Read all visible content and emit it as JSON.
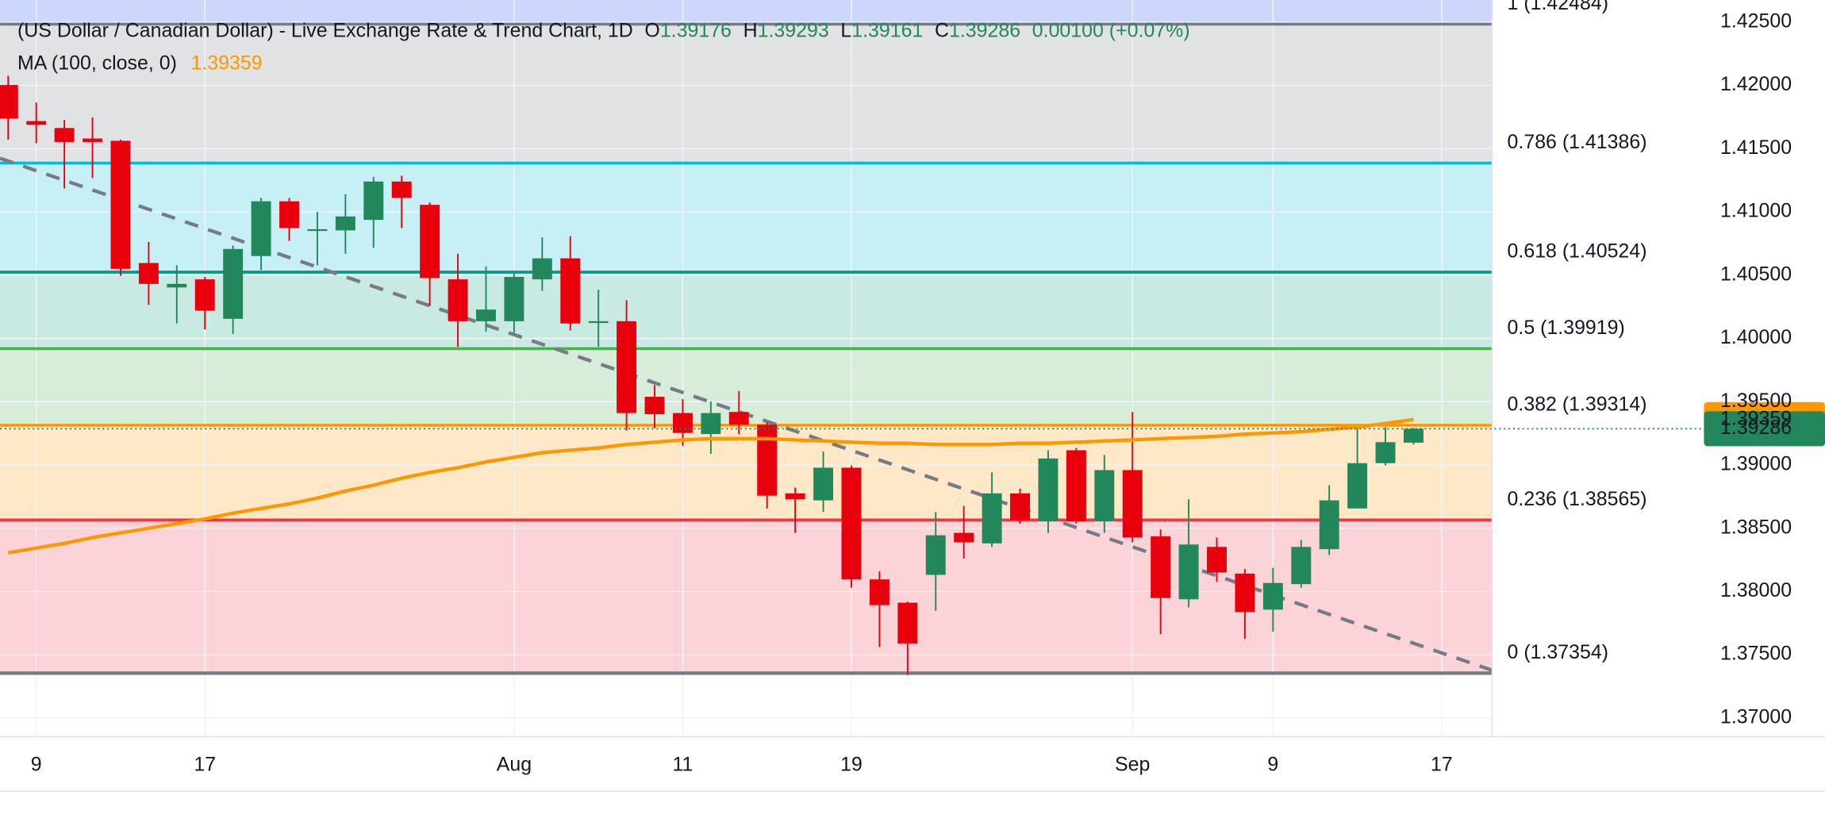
{
  "chart_data": {
    "type": "candlestick",
    "title": "(US Dollar / Canadian Dollar) - Live Exchange Rate & Trend Chart, 1D",
    "ohlc_labels": [
      "O",
      "H",
      "L",
      "C"
    ],
    "change": "0.00100 (+0.07%)",
    "categories": [
      null,
      "9",
      null,
      null,
      null,
      null,
      null,
      "17",
      null,
      null,
      null,
      null,
      null,
      null,
      null,
      null,
      null,
      null,
      "Aug",
      null,
      null,
      null,
      null,
      null,
      "11",
      null,
      null,
      null,
      null,
      null,
      "19",
      null,
      null,
      null,
      null,
      null,
      null,
      null,
      null,
      null,
      "Sep",
      null,
      null,
      null,
      null,
      "9",
      null,
      null,
      null,
      null,
      null,
      "17"
    ],
    "open": [
      1.42003,
      1.41718,
      1.41663,
      1.4158,
      1.41562,
      1.40596,
      1.40403,
      1.40467,
      1.40155,
      1.40651,
      1.41084,
      1.40854,
      1.40854,
      1.40937,
      1.4124,
      1.41056,
      1.40467,
      1.40136,
      1.40136,
      1.40467,
      1.40633,
      1.40127,
      1.40136,
      1.39539,
      1.3941,
      1.39244,
      1.39419,
      1.39318,
      1.38775,
      1.3872,
      1.38978,
      1.38095,
      1.37911,
      1.38131,
      1.38463,
      1.3838,
      1.38775,
      1.38555,
      1.39116,
      1.38555,
      1.38959,
      1.38435,
      1.37938,
      1.38352,
      1.38141,
      1.37856,
      1.38058,
      1.38334,
      1.38656,
      1.39014,
      1.39176,
      null
    ],
    "high": [
      1.42077,
      1.41865,
      1.41727,
      1.41746,
      1.41571,
      1.40762,
      1.40578,
      1.40486,
      1.40734,
      1.41111,
      1.41111,
      1.41001,
      1.41139,
      1.41277,
      1.41286,
      1.41074,
      1.4067,
      1.40569,
      1.40513,
      1.40799,
      1.40808,
      1.40385,
      1.40302,
      1.39631,
      1.3952,
      1.39502,
      1.39585,
      1.39336,
      1.38821,
      1.39106,
      1.38996,
      1.38159,
      1.3792,
      1.38628,
      1.38674,
      1.38941,
      1.38812,
      1.39116,
      1.39134,
      1.39079,
      1.39419,
      1.3849,
      1.38729,
      1.38426,
      1.38177,
      1.38187,
      1.38407,
      1.3884,
      1.39299,
      1.39299,
      1.39293,
      null
    ],
    "low": [
      1.41571,
      1.41543,
      1.41185,
      1.41268,
      1.40495,
      1.40265,
      1.40118,
      1.40072,
      1.40035,
      1.40541,
      1.40771,
      1.40578,
      1.4067,
      1.40716,
      1.40872,
      1.40256,
      1.39934,
      1.40054,
      1.40044,
      1.40376,
      1.40063,
      1.39934,
      1.39272,
      1.3929,
      1.39152,
      1.39088,
      1.39244,
      1.38656,
      1.38463,
      1.38628,
      1.3803,
      1.37561,
      1.3734,
      1.37846,
      1.3826,
      1.38352,
      1.38536,
      1.38463,
      1.38536,
      1.38463,
      1.38389,
      1.37663,
      1.37874,
      1.38076,
      1.37626,
      1.37681,
      1.3803,
      1.38288,
      1.38656,
      1.38996,
      1.39161,
      null
    ],
    "close": [
      1.41737,
      1.4169,
      1.41553,
      1.41553,
      1.4055,
      1.40431,
      1.40431,
      1.40219,
      1.40707,
      1.41084,
      1.40872,
      1.40863,
      1.40964,
      1.4124,
      1.41111,
      1.40477,
      1.40136,
      1.40228,
      1.40486,
      1.40633,
      1.40118,
      1.40136,
      1.3941,
      1.39401,
      1.39253,
      1.3941,
      1.39318,
      1.38757,
      1.38729,
      1.38978,
      1.38095,
      1.37892,
      1.37589,
      1.38444,
      1.38389,
      1.38775,
      1.38564,
      1.39051,
      1.38555,
      1.38959,
      1.38426,
      1.37948,
      1.38371,
      1.3815,
      1.37837,
      1.38067,
      1.38352,
      1.3872,
      1.39014,
      1.3918,
      1.39286,
      null
    ],
    "up_color": "#22875a",
    "down_color": "#e8000d",
    "ma": {
      "name": "MA (100, close, 0)",
      "color": "#ff9800",
      "values": [
        1.38306,
        1.38343,
        1.3838,
        1.38426,
        1.38463,
        1.38499,
        1.38536,
        1.38573,
        1.38619,
        1.38656,
        1.38692,
        1.38738,
        1.38794,
        1.3884,
        1.38895,
        1.38941,
        1.38978,
        1.39024,
        1.3906,
        1.39097,
        1.39116,
        1.39134,
        1.39162,
        1.3918,
        1.39198,
        1.39208,
        1.39208,
        1.39208,
        1.39198,
        1.39189,
        1.3918,
        1.39171,
        1.39171,
        1.39162,
        1.39162,
        1.39162,
        1.39171,
        1.39171,
        1.3918,
        1.39189,
        1.39198,
        1.39208,
        1.39217,
        1.39226,
        1.39244,
        1.39253,
        1.39263,
        1.39281,
        1.393,
        1.39327,
        1.39359,
        null
      ]
    },
    "fib_levels": [
      {
        "value": 1.42484,
        "label": "1 (1.42484)",
        "color": "#787b86"
      },
      {
        "value": 1.41386,
        "label": "0.786 (1.41386)",
        "color": "#00bcd4"
      },
      {
        "value": 1.40524,
        "label": "0.618 (1.40524)",
        "color": "#089981"
      },
      {
        "value": 1.39919,
        "label": "0.5 (1.39919)",
        "color": "#4caf50"
      },
      {
        "value": 1.39314,
        "label": "0.382 (1.39314)",
        "color": "#ff9800"
      },
      {
        "value": 1.38565,
        "label": "0.236 (1.38565)",
        "color": "#f23645"
      },
      {
        "value": 1.37354,
        "label": "0 (1.37354)",
        "color": "#787b86"
      }
    ],
    "ylim": [
      1.36853,
      1.42675
    ],
    "yticks": [
      {
        "value": 1.37,
        "label": "1.37000"
      },
      {
        "value": 1.375,
        "label": "1.37500"
      },
      {
        "value": 1.38,
        "label": "1.38000"
      },
      {
        "value": 1.385,
        "label": "1.38500"
      },
      {
        "value": 1.39,
        "label": "1.39000"
      },
      {
        "value": 1.395,
        "label": "1.39500"
      },
      {
        "value": 1.4,
        "label": "1.40000"
      },
      {
        "value": 1.405,
        "label": "1.40500"
      },
      {
        "value": 1.41,
        "label": "1.41000"
      },
      {
        "value": 1.415,
        "label": "1.41500"
      },
      {
        "value": 1.42,
        "label": "1.42000"
      },
      {
        "value": 1.425,
        "label": "1.42500"
      }
    ],
    "grid": true
  }
}
